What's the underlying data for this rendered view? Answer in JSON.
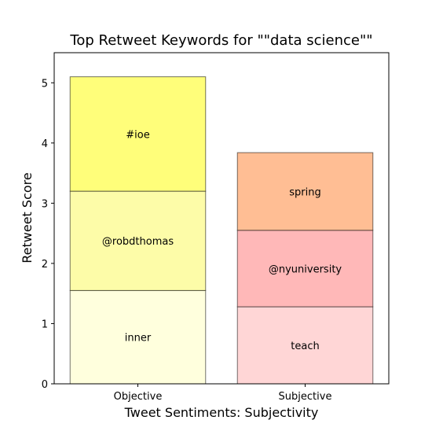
{
  "chart_data": {
    "type": "bar",
    "stacked": true,
    "title": "Top Retweet Keywords for \"\"data science\"\"",
    "xlabel": "Tweet Sentiments: Subjectivity",
    "ylabel": "Retweet Score",
    "ylim": [
      0,
      5.5
    ],
    "yticks": [
      0,
      1,
      2,
      3,
      4,
      5
    ],
    "grid": false,
    "categories": [
      {
        "name": "Objective",
        "segments": [
          {
            "label": "inner",
            "value": 1.55,
            "color": "#ffffdd"
          },
          {
            "label": "@robdthomas",
            "value": 1.65,
            "color": "#fdfca8"
          },
          {
            "label": "#ioe",
            "value": 1.9,
            "color": "#fffe7a"
          }
        ]
      },
      {
        "name": "Subjective",
        "segments": [
          {
            "label": "teach",
            "value": 1.28,
            "color": "#ffd6d6"
          },
          {
            "label": "@nyuniversity",
            "value": 1.27,
            "color": "#ffb8b8"
          },
          {
            "label": "spring",
            "value": 1.29,
            "color": "#ffbe94"
          }
        ]
      }
    ]
  }
}
